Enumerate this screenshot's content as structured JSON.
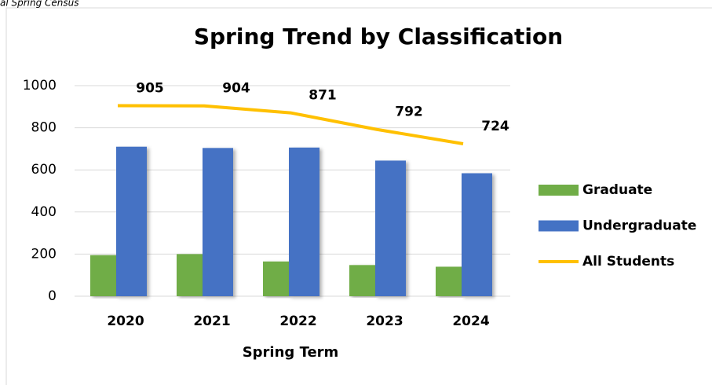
{
  "chart_data": {
    "type": "bar_line",
    "annotation": "al Spring Census",
    "title": "Spring Trend by Classification",
    "x_label": "Spring Term",
    "categories": [
      "2020",
      "2021",
      "2022",
      "2023",
      "2024"
    ],
    "series": [
      {
        "name": "Graduate",
        "type": "bar",
        "color": "#70ad47",
        "values": [
          195,
          200,
          165,
          148,
          140
        ]
      },
      {
        "name": "Undergraduate",
        "type": "bar",
        "color": "#4472c4",
        "values": [
          710,
          704,
          706,
          644,
          584
        ]
      },
      {
        "name": "All Students",
        "type": "line",
        "color": "#ffc000",
        "values": [
          905,
          904,
          871,
          792,
          724
        ],
        "data_labels": true
      }
    ],
    "ylim": [
      0,
      1000
    ],
    "yticks": [
      0,
      200,
      400,
      600,
      800,
      1000
    ],
    "grid": true,
    "legend": "right"
  }
}
